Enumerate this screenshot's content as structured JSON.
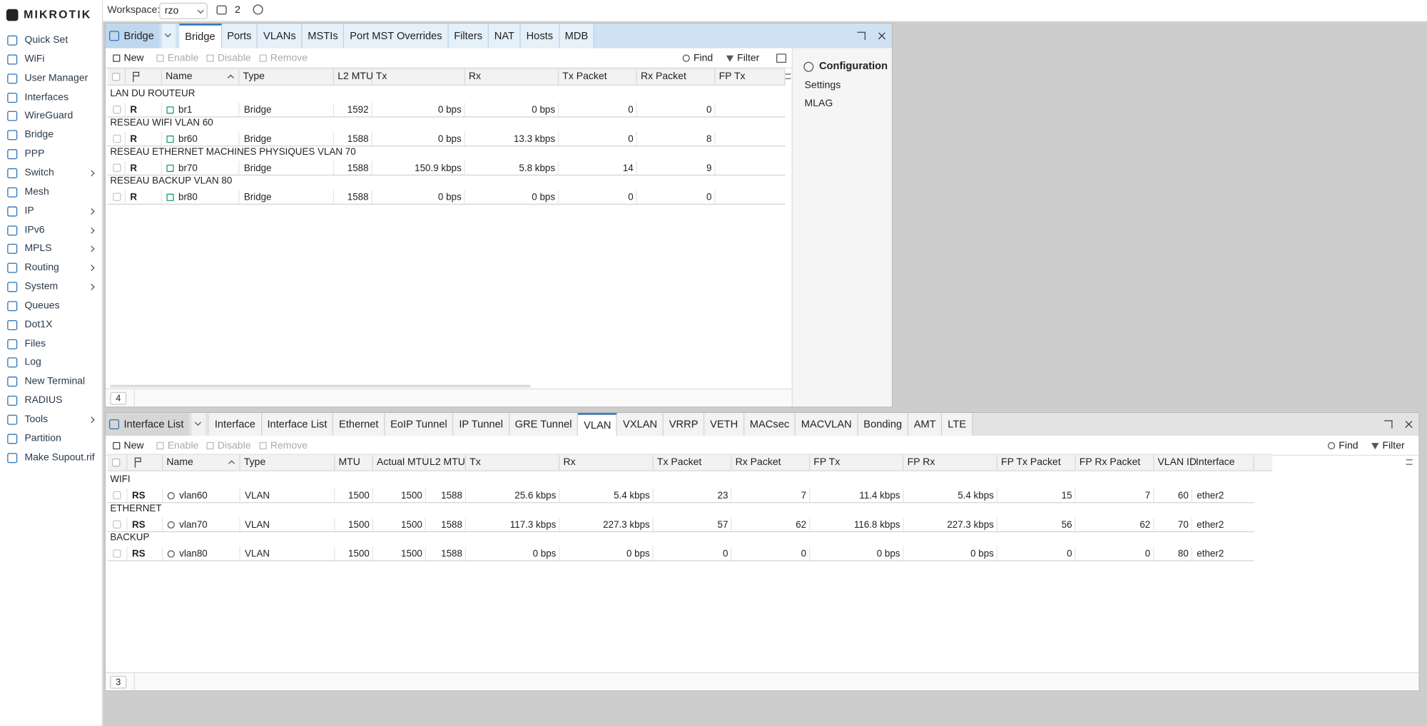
{
  "sidebar": {
    "brand": "mikrotik",
    "menu": [
      {
        "label": "Quick Set"
      },
      {
        "label": "WiFi"
      },
      {
        "label": "User Manager"
      },
      {
        "label": "Interfaces"
      },
      {
        "label": "WireGuard"
      },
      {
        "label": "Bridge"
      },
      {
        "label": "PPP"
      },
      {
        "label": "Switch",
        "submenu": true
      },
      {
        "label": "Mesh"
      },
      {
        "label": "IP",
        "submenu": true
      },
      {
        "label": "IPv6",
        "submenu": true
      },
      {
        "label": "MPLS",
        "submenu": true
      },
      {
        "label": "Routing",
        "submenu": true
      },
      {
        "label": "System",
        "submenu": true
      },
      {
        "label": "Queues"
      },
      {
        "label": "Dot1X"
      },
      {
        "label": "Files"
      },
      {
        "label": "Log"
      },
      {
        "label": "New Terminal"
      },
      {
        "label": "RADIUS"
      },
      {
        "label": "Tools",
        "submenu": true
      },
      {
        "label": "Partition"
      },
      {
        "label": "Make Supout.rif"
      }
    ]
  },
  "topbar": {
    "workspace_label": "Workspace:",
    "workspace": "rzo",
    "open_windows": 2
  },
  "windows": [
    {
      "title": "Bridge",
      "focused": true,
      "tabs": [
        "Bridge",
        "Ports",
        "VLANs",
        "MSTIs",
        "Port MST Overrides",
        "Filters",
        "NAT",
        "Hosts",
        "MDB"
      ],
      "active_tab": 0,
      "toolbar": [
        "New",
        "Enable",
        "Disable",
        "Remove"
      ],
      "find": "Find",
      "filter": "Filter",
      "columns": [
        "Name",
        "Type",
        "L2 MTU",
        "Tx",
        "Rx",
        "Tx Packet",
        "Rx Packet",
        "FP Tx"
      ],
      "groups": [
        {
          "label": "LAN DU ROUTEUR",
          "rows": [
            [
              "R",
              "br1",
              "Bridge",
              1592,
              "0 bps",
              "0 bps",
              0,
              0
            ]
          ]
        },
        {
          "label": "RESEAU WIFI VLAN 60",
          "rows": [
            [
              "R",
              "br60",
              "Bridge",
              1588,
              "0 bps",
              "13.3 kbps",
              0,
              8
            ]
          ]
        },
        {
          "label": "RESEAU ETHERNET MACHINES PHYSIQUES VLAN 70",
          "rows": [
            [
              "R",
              "br70",
              "Bridge",
              1588,
              "150.9 kbps",
              "5.8 kbps",
              14,
              9
            ]
          ]
        },
        {
          "label": "RESEAU BACKUP VLAN 80",
          "rows": [
            [
              "R",
              "br80",
              "Bridge",
              1588,
              "0 bps",
              "0 bps",
              0,
              0
            ]
          ]
        }
      ],
      "count": 4,
      "side_panel": {
        "title": "Configuration",
        "items": [
          "Settings",
          "MLAG"
        ]
      }
    },
    {
      "title": "Interface List",
      "focused": false,
      "tabs": [
        "Interface",
        "Interface List",
        "Ethernet",
        "EoIP Tunnel",
        "IP Tunnel",
        "GRE Tunnel",
        "VLAN",
        "VXLAN",
        "VRRP",
        "VETH",
        "MACsec",
        "MACVLAN",
        "Bonding",
        "AMT",
        "LTE"
      ],
      "active_tab": 6,
      "toolbar": [
        "New",
        "Enable",
        "Disable",
        "Remove"
      ],
      "find": "Find",
      "filter": "Filter",
      "columns": [
        "Name",
        "Type",
        "MTU",
        "Actual MTU",
        "L2 MTU",
        "Tx",
        "Rx",
        "Tx Packet",
        "Rx Packet",
        "FP Tx",
        "FP Rx",
        "FP Tx Packet",
        "FP Rx Packet",
        "VLAN ID",
        "Interface"
      ],
      "groups": [
        {
          "label": "WIFI",
          "rows": [
            [
              "RS",
              "vlan60",
              "VLAN",
              1500,
              1500,
              1588,
              "25.6 kbps",
              "5.4 kbps",
              23,
              7,
              "11.4 kbps",
              "5.4 kbps",
              15,
              7,
              60,
              "ether2"
            ]
          ]
        },
        {
          "label": "ETHERNET",
          "rows": [
            [
              "RS",
              "vlan70",
              "VLAN",
              1500,
              1500,
              1588,
              "117.3 kbps",
              "227.3 kbps",
              57,
              62,
              "116.8 kbps",
              "227.3 kbps",
              56,
              62,
              70,
              "ether2"
            ]
          ]
        },
        {
          "label": "BACKUP",
          "rows": [
            [
              "RS",
              "vlan80",
              "VLAN",
              1500,
              1500,
              1588,
              "0 bps",
              "0 bps",
              0,
              0,
              "0 bps",
              "0 bps",
              0,
              0,
              80,
              "ether2"
            ]
          ]
        }
      ],
      "count": 3
    }
  ]
}
